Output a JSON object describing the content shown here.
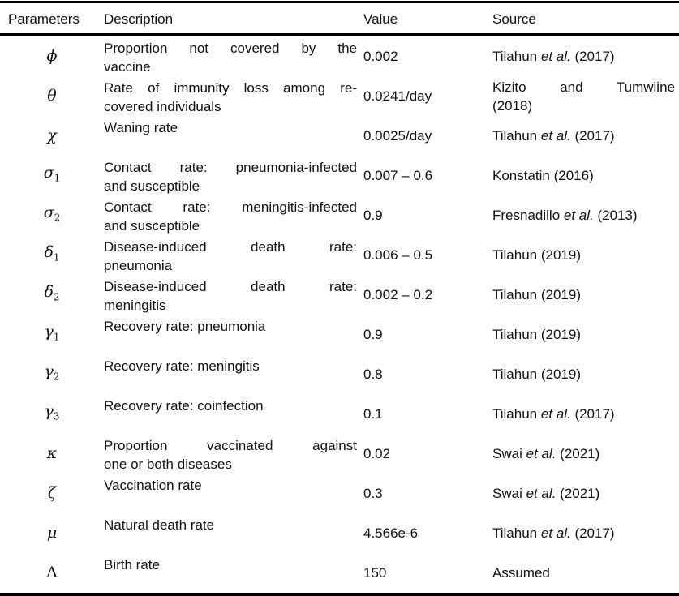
{
  "colors": {
    "background": "#ffffff",
    "text": "#111111",
    "rule": "#000000"
  },
  "header": {
    "columns": [
      "Parameters",
      "Description",
      "Value",
      "Source"
    ]
  },
  "rows": [
    {
      "param": {
        "symbol": "ϕ",
        "sub": "",
        "style": "italic"
      },
      "description_lines": [
        "Proportion not covered by the",
        "vaccine"
      ],
      "value": "0.002",
      "source_lines": [
        [
          {
            "t": "Tilahun ",
            "i": false
          },
          {
            "t": "et al.",
            "i": true
          },
          {
            "t": " (2017)",
            "i": false
          }
        ]
      ]
    },
    {
      "param": {
        "symbol": "θ",
        "sub": "",
        "style": "italic"
      },
      "description_lines": [
        "Rate of immunity loss among re-",
        "covered individuals"
      ],
      "value": "0.0241/day",
      "source_lines": [
        [
          {
            "t": "Kizito and Tumwiine",
            "i": false
          }
        ],
        [
          {
            "t": "(2018)",
            "i": false
          }
        ]
      ]
    },
    {
      "param": {
        "symbol": "χ",
        "sub": "",
        "style": "italic"
      },
      "description_lines": [
        "Waning rate"
      ],
      "value": "0.0025/day",
      "source_lines": [
        [
          {
            "t": "Tilahun ",
            "i": false
          },
          {
            "t": "et al.",
            "i": true
          },
          {
            "t": " (2017)",
            "i": false
          }
        ]
      ]
    },
    {
      "param": {
        "symbol": "σ",
        "sub": "1",
        "style": "italic"
      },
      "description_lines": [
        "Contact rate: pneumonia-infected",
        "and susceptible"
      ],
      "value": "0.007 – 0.6",
      "source_lines": [
        [
          {
            "t": "Konstatin (2016)",
            "i": false
          }
        ]
      ]
    },
    {
      "param": {
        "symbol": "σ",
        "sub": "2",
        "style": "italic"
      },
      "description_lines": [
        "Contact rate: meningitis-infected",
        "and susceptible"
      ],
      "value": "0.9",
      "source_lines": [
        [
          {
            "t": "Fresnadillo ",
            "i": false
          },
          {
            "t": "et al.",
            "i": true
          },
          {
            "t": " (2013)",
            "i": false
          }
        ]
      ]
    },
    {
      "param": {
        "symbol": "δ",
        "sub": "1",
        "style": "italic"
      },
      "description_lines": [
        "Disease-induced death rate:",
        "pneumonia"
      ],
      "value": "0.006 – 0.5",
      "source_lines": [
        [
          {
            "t": "Tilahun (2019)",
            "i": false
          }
        ]
      ]
    },
    {
      "param": {
        "symbol": "δ",
        "sub": "2",
        "style": "italic"
      },
      "description_lines": [
        "Disease-induced death rate:",
        "meningitis"
      ],
      "value": "0.002 – 0.2",
      "source_lines": [
        [
          {
            "t": "Tilahun (2019)",
            "i": false
          }
        ]
      ]
    },
    {
      "param": {
        "symbol": "γ",
        "sub": "1",
        "style": "italic"
      },
      "description_lines": [
        "Recovery rate: pneumonia"
      ],
      "value": "0.9",
      "source_lines": [
        [
          {
            "t": "Tilahun (2019)",
            "i": false
          }
        ]
      ]
    },
    {
      "param": {
        "symbol": "γ",
        "sub": "2",
        "style": "italic"
      },
      "description_lines": [
        "Recovery rate: meningitis"
      ],
      "value": "0.8",
      "source_lines": [
        [
          {
            "t": "Tilahun (2019)",
            "i": false
          }
        ]
      ]
    },
    {
      "param": {
        "symbol": "γ",
        "sub": "3",
        "style": "italic"
      },
      "description_lines": [
        "Recovery rate: coinfection"
      ],
      "value": "0.1",
      "source_lines": [
        [
          {
            "t": "Tilahun ",
            "i": false
          },
          {
            "t": "et al.",
            "i": true
          },
          {
            "t": " (2017)",
            "i": false
          }
        ]
      ]
    },
    {
      "param": {
        "symbol": "κ",
        "sub": "",
        "style": "italic"
      },
      "description_lines": [
        "Proportion vaccinated against",
        "one or both diseases"
      ],
      "value": "0.02",
      "source_lines": [
        [
          {
            "t": "Swai ",
            "i": false
          },
          {
            "t": "et al.",
            "i": true
          },
          {
            "t": " (2021)",
            "i": false
          }
        ]
      ]
    },
    {
      "param": {
        "symbol": "ζ",
        "sub": "",
        "style": "italic"
      },
      "description_lines": [
        "Vaccination rate"
      ],
      "value": "0.3",
      "source_lines": [
        [
          {
            "t": "Swai ",
            "i": false
          },
          {
            "t": "et al.",
            "i": true
          },
          {
            "t": " (2021)",
            "i": false
          }
        ]
      ]
    },
    {
      "param": {
        "symbol": "μ",
        "sub": "",
        "style": "italic"
      },
      "description_lines": [
        "Natural death rate"
      ],
      "value": "4.566e-6",
      "source_lines": [
        [
          {
            "t": "Tilahun ",
            "i": false
          },
          {
            "t": "et al.",
            "i": true
          },
          {
            "t": " (2017)",
            "i": false
          }
        ]
      ]
    },
    {
      "param": {
        "symbol": "Λ",
        "sub": "",
        "style": "upright"
      },
      "description_lines": [
        "Birth rate"
      ],
      "value": "150",
      "source_lines": [
        [
          {
            "t": "Assumed",
            "i": false
          }
        ]
      ]
    }
  ]
}
